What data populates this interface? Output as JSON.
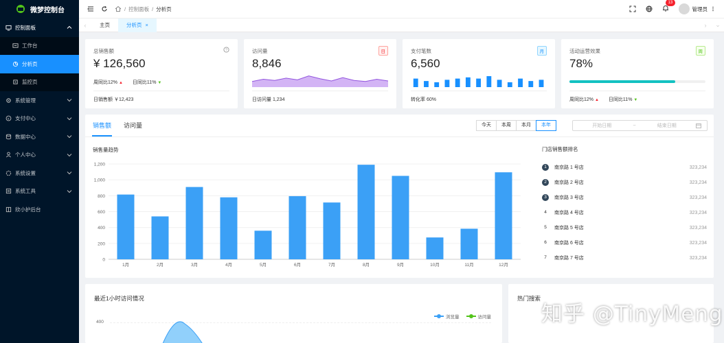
{
  "app": {
    "title": "微梦控制台"
  },
  "sidebar": {
    "items": [
      {
        "label": "控制面板",
        "open": true
      },
      {
        "label": "工作台"
      },
      {
        "label": "分析页",
        "active": true
      },
      {
        "label": "监控页"
      },
      {
        "label": "系统管理"
      },
      {
        "label": "支付中心"
      },
      {
        "label": "数据中心"
      },
      {
        "label": "个人中心"
      },
      {
        "label": "系统设置"
      },
      {
        "label": "系统工具"
      },
      {
        "label": "欣小护后台"
      }
    ]
  },
  "header": {
    "breadcrumb": [
      "控制面板",
      "分析页"
    ],
    "notification_count": "13",
    "user": "管理员"
  },
  "tabs": [
    {
      "label": "主页"
    },
    {
      "label": "分析页"
    }
  ],
  "stats": [
    {
      "title": "总销售额",
      "value": "¥ 126,560",
      "week": "周同比12%",
      "day": "日同比11%",
      "foot": "日销售额 ￥12,423"
    },
    {
      "title": "访问量",
      "tag": "日",
      "value": "8,846",
      "foot": "日访问量 1,234"
    },
    {
      "title": "支付笔数",
      "tag": "月",
      "value": "6,560",
      "foot": "转化率 60%"
    },
    {
      "title": "活动运营效果",
      "tag": "周",
      "value": "78%",
      "progress": 0.78,
      "week": "周同比12%",
      "day": "日同比11%"
    }
  ],
  "sales": {
    "tabs": [
      "销售额",
      "访问量"
    ],
    "ranges": [
      "今天",
      "本周",
      "本月",
      "本年"
    ],
    "date_start_placeholder": "开始日期",
    "date_sep": "~",
    "date_end_placeholder": "结束日期",
    "chart_title": "销售量趋势",
    "rank_title": "门店销售额排名",
    "rank": [
      {
        "num": "1",
        "name": "南京路 1 号店",
        "value": "323,234"
      },
      {
        "num": "2",
        "name": "南京路 2 号店",
        "value": "323,234"
      },
      {
        "num": "3",
        "name": "南京路 3 号店",
        "value": "323,234"
      },
      {
        "num": "4",
        "name": "南京路 4 号店",
        "value": "323,234"
      },
      {
        "num": "5",
        "name": "南京路 5 号店",
        "value": "323,234"
      },
      {
        "num": "6",
        "name": "南京路 6 号店",
        "value": "323,234"
      },
      {
        "num": "7",
        "name": "南京路 7 号店",
        "value": "323,234"
      }
    ]
  },
  "visits": {
    "title": "最近1小时访问情况",
    "legend": [
      "浏览量",
      "访问量"
    ],
    "tick_top": "400"
  },
  "hot_search": {
    "title": "热门搜索"
  },
  "watermark": "知乎 @TinyMeng",
  "colors": {
    "primary": "#1890ff",
    "sidebar": "#001529",
    "bar": "#3ba0f6",
    "area": "#b37feb",
    "progress": "#13c2c2"
  },
  "chart_data": {
    "type": "bar",
    "categories": [
      "1月",
      "2月",
      "3月",
      "4月",
      "5月",
      "6月",
      "7月",
      "8月",
      "9月",
      "10月",
      "11月",
      "12月"
    ],
    "values": [
      815,
      540,
      910,
      780,
      360,
      795,
      715,
      1190,
      1050,
      275,
      385,
      1095
    ],
    "yticks": [
      "0",
      "200",
      "400",
      "600",
      "800",
      "1,000",
      "1,200"
    ],
    "ylim": [
      0,
      1200
    ],
    "title": "销售量趋势"
  },
  "mini_area": {
    "values": [
      10,
      14,
      12,
      16,
      13,
      20,
      15,
      11,
      17,
      12,
      10,
      14,
      11
    ]
  },
  "mini_bars": {
    "values": [
      7,
      5,
      4,
      6,
      7,
      8,
      7,
      9,
      6,
      4,
      7,
      5,
      6
    ]
  }
}
